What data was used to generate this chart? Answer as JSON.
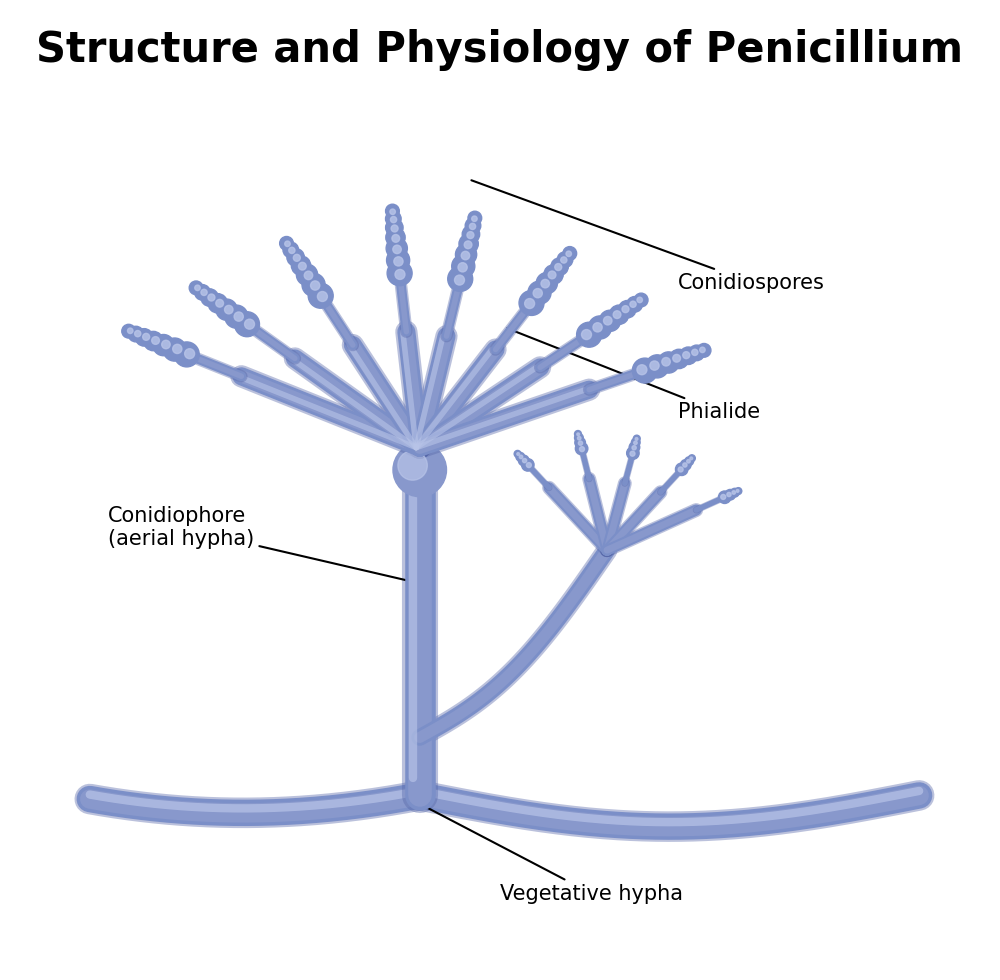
{
  "title": "Structure and Physiology of Penicillium",
  "title_fontsize": 30,
  "title_fontweight": "bold",
  "background_color": "#ffffff",
  "mold_color_main": "#7B8FC8",
  "mold_color_light": "#9BAAD8",
  "mold_color_dark": "#4A5E9A",
  "mold_color_fill": "#8898CC",
  "mold_color_highlight": "#B8C4E8",
  "mold_color_shadow": "#5566A8",
  "labels": {
    "conidiospores": "Conidiospores",
    "phialide": "Phialide",
    "conidiophore": "Conidiophore\n(aerial hypha)",
    "vegetative_hypha": "Vegetative hypha"
  },
  "label_fontsize": 15,
  "annotation_color": "#000000",
  "figsize": [
    10.0,
    9.8
  ],
  "dpi": 100
}
